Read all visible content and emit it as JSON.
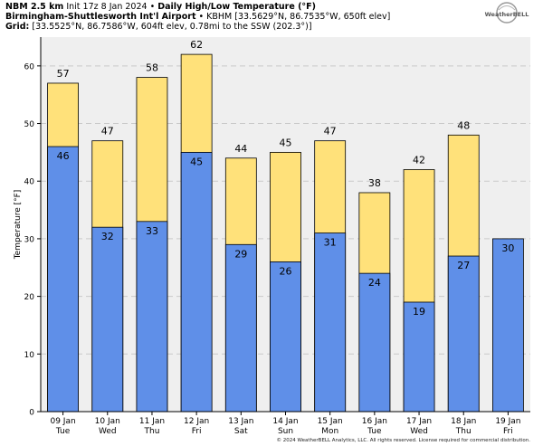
{
  "header": {
    "line1": {
      "model": "NBM 2.5 km",
      "init": "Init 17z 8 Jan 2024",
      "sep": "•",
      "product": "Daily High/Low Temperature (°F)"
    },
    "line2": {
      "station": "Birmingham-Shuttlesworth Int'l Airport",
      "sep": "•",
      "details": "KBHM [33.5629°N, 86.7535°W, 650ft elev]"
    },
    "line3": {
      "label": "Grid:",
      "details": "[33.5525°N, 86.7586°W, 604ft elev, 0.78mi to the SSW (202.3°)]"
    }
  },
  "logo": {
    "text": "WeatherBELL"
  },
  "copyright": "© 2024 WeatherBELL Analytics, LLC. All rights reserved. License required for commercial distribution.",
  "chart_data": {
    "type": "bar",
    "ylabel": "Temperature [°F]",
    "ylim": [
      0,
      65
    ],
    "yticks": [
      0,
      10,
      20,
      30,
      40,
      50,
      60
    ],
    "grid": true,
    "categories": [
      {
        "date": "09 Jan",
        "day": "Tue"
      },
      {
        "date": "10 Jan",
        "day": "Wed"
      },
      {
        "date": "11 Jan",
        "day": "Thu"
      },
      {
        "date": "12 Jan",
        "day": "Fri"
      },
      {
        "date": "13 Jan",
        "day": "Sat"
      },
      {
        "date": "14 Jan",
        "day": "Sun"
      },
      {
        "date": "15 Jan",
        "day": "Mon"
      },
      {
        "date": "16 Jan",
        "day": "Tue"
      },
      {
        "date": "17 Jan",
        "day": "Wed"
      },
      {
        "date": "18 Jan",
        "day": "Thu"
      },
      {
        "date": "19 Jan",
        "day": "Fri"
      }
    ],
    "series": [
      {
        "color": "#ffe17a",
        "values": [
          57,
          47,
          58,
          62,
          44,
          45,
          47,
          38,
          42,
          48,
          null
        ]
      },
      {
        "color": "#5f8fe8",
        "values": [
          46,
          32,
          33,
          45,
          29,
          26,
          31,
          24,
          19,
          27,
          30
        ]
      }
    ]
  }
}
